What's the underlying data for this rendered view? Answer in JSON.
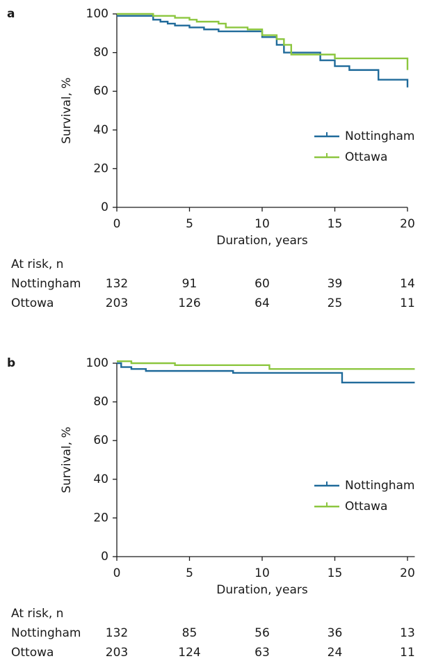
{
  "chart_data": [
    {
      "type": "step",
      "panel": "a",
      "x_label": "Duration, years",
      "y_label": "Survival, %",
      "xlim": [
        0,
        20
      ],
      "xticks": [
        0,
        5,
        10,
        15,
        20
      ],
      "ylim": [
        0,
        100
      ],
      "yticks": [
        0,
        20,
        40,
        60,
        80,
        100
      ],
      "legend": "center right",
      "series": [
        {
          "name": "Nottingham",
          "color": "#1f6a9a",
          "x": [
            0,
            2.3,
            2.5,
            3,
            3.5,
            4,
            4.5,
            5,
            6,
            7,
            8,
            9,
            10,
            11,
            11.5,
            13.5,
            14,
            15,
            16,
            18,
            20,
            20
          ],
          "values": [
            99,
            99,
            97,
            96,
            95,
            94,
            94,
            93,
            92,
            91,
            91,
            91,
            88,
            84,
            80,
            80,
            76,
            73,
            71,
            66,
            66,
            62
          ]
        },
        {
          "name": "Ottawa",
          "color": "#8cc63f",
          "x": [
            0,
            2.5,
            4,
            5,
            5.5,
            6,
            7,
            7.5,
            8,
            9,
            10,
            11,
            11.5,
            12,
            13,
            14,
            15,
            18,
            19.5,
            20
          ],
          "values": [
            100,
            99,
            98,
            97,
            96,
            96,
            95,
            93,
            93,
            92,
            89,
            87,
            84,
            79,
            79,
            79,
            77,
            77,
            77,
            71
          ]
        }
      ],
      "at_risk": {
        "label": "At risk, n",
        "rows": [
          {
            "name": "Nottingham",
            "values": [
              132,
              91,
              60,
              39,
              14
            ]
          },
          {
            "name": "Ottowa",
            "values": [
              203,
              126,
              64,
              25,
              11
            ]
          }
        ]
      }
    },
    {
      "type": "step",
      "panel": "b",
      "x_label": "Duration, years",
      "y_label": "Survival, %",
      "xlim": [
        0,
        20.5
      ],
      "xticks": [
        0,
        5,
        10,
        15,
        20
      ],
      "ylim": [
        0,
        100
      ],
      "yticks": [
        0,
        20,
        40,
        60,
        80,
        100
      ],
      "legend": "center right",
      "series": [
        {
          "name": "Nottingham",
          "color": "#1f6a9a",
          "x": [
            0,
            0.3,
            1,
            2,
            3,
            8,
            10,
            12,
            15.5,
            20.5
          ],
          "values": [
            100,
            98,
            97,
            96,
            96,
            95,
            95,
            95,
            90,
            90
          ]
        },
        {
          "name": "Ottawa",
          "color": "#8cc63f",
          "x": [
            0,
            1,
            2,
            4,
            6,
            8,
            10.5,
            20.5
          ],
          "values": [
            101,
            100,
            100,
            99,
            99,
            99,
            97,
            97
          ]
        }
      ],
      "at_risk": {
        "label": "At risk, n",
        "rows": [
          {
            "name": "Nottingham",
            "values": [
              132,
              85,
              56,
              36,
              13
            ]
          },
          {
            "name": "Ottowa",
            "values": [
              203,
              124,
              63,
              24,
              11
            ]
          }
        ]
      }
    }
  ]
}
